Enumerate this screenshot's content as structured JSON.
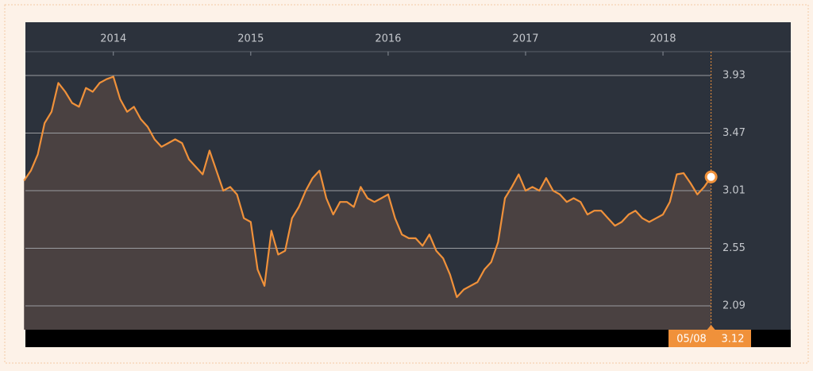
{
  "chart_data": {
    "type": "line",
    "x": [
      2013.35,
      2013.4,
      2013.45,
      2013.5,
      2013.55,
      2013.6,
      2013.65,
      2013.7,
      2013.75,
      2013.8,
      2013.85,
      2013.9,
      2013.95,
      2014.0,
      2014.05,
      2014.1,
      2014.15,
      2014.2,
      2014.25,
      2014.3,
      2014.35,
      2014.4,
      2014.45,
      2014.5,
      2014.55,
      2014.6,
      2014.65,
      2014.7,
      2014.75,
      2014.8,
      2014.85,
      2014.9,
      2014.95,
      2015.0,
      2015.05,
      2015.1,
      2015.15,
      2015.2,
      2015.25,
      2015.3,
      2015.35,
      2015.4,
      2015.45,
      2015.5,
      2015.55,
      2015.6,
      2015.65,
      2015.7,
      2015.75,
      2015.8,
      2015.85,
      2015.9,
      2015.95,
      2016.0,
      2016.05,
      2016.1,
      2016.15,
      2016.2,
      2016.25,
      2016.3,
      2016.35,
      2016.4,
      2016.45,
      2016.5,
      2016.55,
      2016.6,
      2016.65,
      2016.7,
      2016.75,
      2016.8,
      2016.85,
      2016.9,
      2016.95,
      2017.0,
      2017.05,
      2017.1,
      2017.15,
      2017.2,
      2017.25,
      2017.3,
      2017.35,
      2017.4,
      2017.45,
      2017.5,
      2017.55,
      2017.6,
      2017.65,
      2017.7,
      2017.75,
      2017.8,
      2017.85,
      2017.9,
      2017.95,
      2018.0,
      2018.05,
      2018.1,
      2018.15,
      2018.2,
      2018.25,
      2018.3,
      2018.35
    ],
    "values": [
      3.09,
      3.17,
      3.3,
      3.55,
      3.64,
      3.87,
      3.8,
      3.71,
      3.68,
      3.83,
      3.8,
      3.87,
      3.9,
      3.92,
      3.74,
      3.64,
      3.68,
      3.58,
      3.52,
      3.42,
      3.36,
      3.39,
      3.42,
      3.39,
      3.26,
      3.2,
      3.14,
      3.33,
      3.17,
      3.01,
      3.04,
      2.98,
      2.79,
      2.76,
      2.38,
      2.25,
      2.69,
      2.5,
      2.53,
      2.79,
      2.88,
      3.01,
      3.11,
      3.17,
      2.95,
      2.82,
      2.92,
      2.92,
      2.88,
      3.04,
      2.95,
      2.92,
      2.95,
      2.98,
      2.79,
      2.66,
      2.63,
      2.63,
      2.57,
      2.66,
      2.53,
      2.47,
      2.34,
      2.16,
      2.22,
      2.25,
      2.28,
      2.38,
      2.44,
      2.6,
      2.95,
      3.04,
      3.14,
      3.01,
      3.04,
      3.01,
      3.11,
      3.01,
      2.98,
      2.92,
      2.95,
      2.92,
      2.82,
      2.85,
      2.85,
      2.79,
      2.73,
      2.76,
      2.82,
      2.85,
      2.79,
      2.76,
      2.79,
      2.82,
      2.92,
      3.14,
      3.15,
      3.07,
      2.98,
      3.04,
      3.12
    ],
    "color": "#f0913a",
    "hover_date": "05/08",
    "xlim": [
      2013.36,
      2018.93
    ],
    "xticks": [
      2014,
      2015,
      2016,
      2017,
      2018
    ],
    "ylim": [
      1.9,
      4.12
    ],
    "yticks": [
      2.09,
      2.55,
      3.01,
      3.47,
      3.93
    ],
    "grid": true
  }
}
